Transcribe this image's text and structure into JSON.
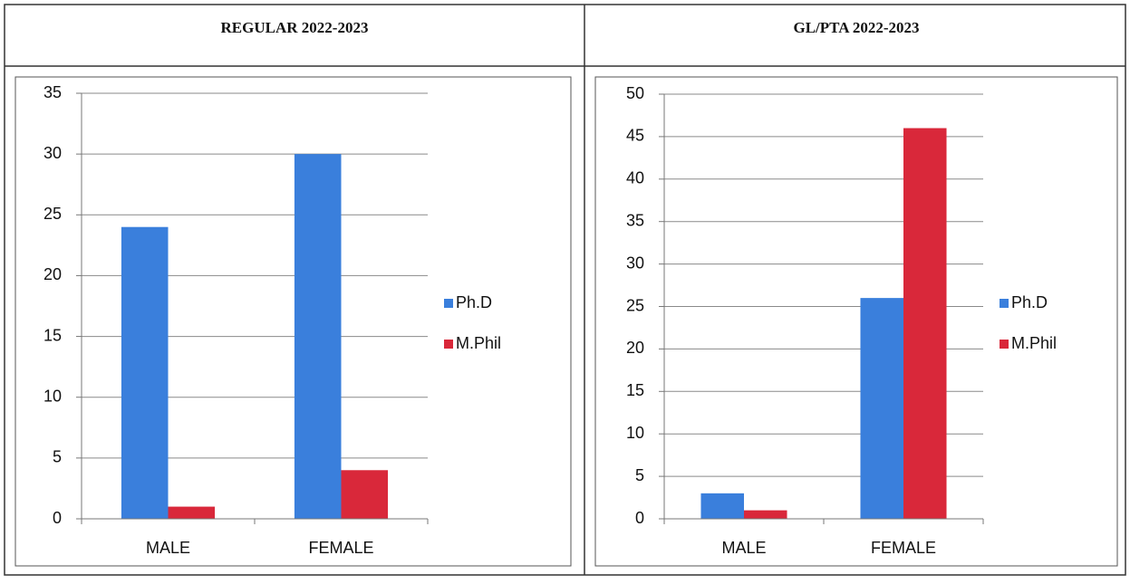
{
  "chart_data": [
    {
      "type": "bar",
      "title": "REGULAR 2022-2023",
      "categories": [
        "MALE",
        "FEMALE"
      ],
      "series": [
        {
          "name": "Ph.D",
          "color": "#3a7fdc",
          "values": [
            24,
            30
          ]
        },
        {
          "name": "M.Phil",
          "color": "#d9283a",
          "values": [
            1,
            4
          ]
        }
      ],
      "ylim": [
        0,
        35
      ],
      "yticks": [
        0,
        5,
        10,
        15,
        20,
        25,
        30,
        35
      ],
      "grid": true,
      "legend": "right"
    },
    {
      "type": "bar",
      "title": "GL/PTA 2022-2023",
      "categories": [
        "MALE",
        "FEMALE"
      ],
      "series": [
        {
          "name": "Ph.D",
          "color": "#3a7fdc",
          "values": [
            3,
            26
          ]
        },
        {
          "name": "M.Phil",
          "color": "#d9283a",
          "values": [
            1,
            46
          ]
        }
      ],
      "ylim": [
        0,
        50
      ],
      "yticks": [
        0,
        5,
        10,
        15,
        20,
        25,
        30,
        35,
        40,
        45,
        50
      ],
      "grid": true,
      "legend": "right"
    }
  ]
}
